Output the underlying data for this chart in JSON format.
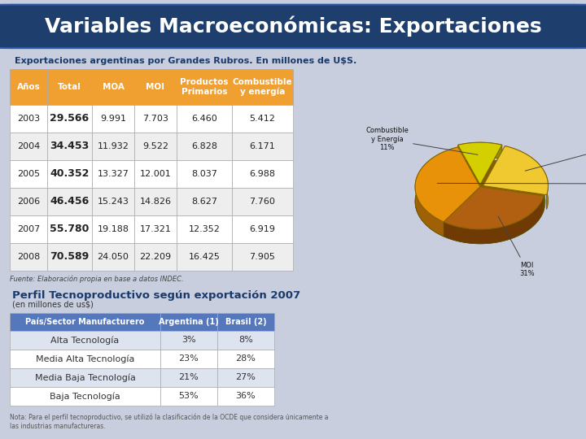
{
  "title": "Variables Macroeconómicas: Exportaciones",
  "title_bg": "#1e3f6e",
  "subtitle": "Exportaciones argentinas por Grandes Rubros. En millones de U$S.",
  "table_headers": [
    "Años",
    "Total",
    "MOA",
    "MOI",
    "Productos\nPrimarios",
    "Combustible\ny energía"
  ],
  "table_data": [
    [
      "2003",
      "29.566",
      "9.991",
      "7.703",
      "6.460",
      "5.412"
    ],
    [
      "2004",
      "34.453",
      "11.932",
      "9.522",
      "6.828",
      "6.171"
    ],
    [
      "2005",
      "40.352",
      "13.327",
      "12.001",
      "8.037",
      "6.988"
    ],
    [
      "2006",
      "46.456",
      "15.243",
      "14.826",
      "8.627",
      "7.760"
    ],
    [
      "2007",
      "55.780",
      "19.188",
      "17.321",
      "12.352",
      "6.919"
    ],
    [
      "2008",
      "70.589",
      "24.050",
      "22.209",
      "16.425",
      "7.905"
    ]
  ],
  "header_bg": "#f0a030",
  "header_fg": "#ffffff",
  "row_bg_even": "#ffffff",
  "row_bg_odd": "#eeeeee",
  "row_fg": "#222222",
  "source_text": "Fuente: Elaboración propia en base a datos INDEC.",
  "perfil_title": "Perfil Tecnoproductivo según exportación 2007",
  "perfil_subtitle": "(en millones de us$)",
  "perfil_headers": [
    "País/Sector Manufacturero",
    "Argentina (1)",
    "Brasil (2)"
  ],
  "perfil_header_bg": "#5577bb",
  "perfil_data": [
    [
      "Alta Tecnología",
      "3%",
      "8%"
    ],
    [
      "Media Alta Tecnología",
      "23%",
      "28%"
    ],
    [
      "Media Baja Tecnología",
      "21%",
      "27%"
    ],
    [
      "Baja Tecnología",
      "53%",
      "36%"
    ]
  ],
  "nota_text": "Nota: Para el perfil tecnoproductivo, se utilizó la clasificación de la OCDE que considera únicamente a\nlas industrias manufactureras.",
  "pie_values": [
    35,
    31,
    23,
    11
  ],
  "pie_colors": [
    "#e8920a",
    "#b06010",
    "#f0c830",
    "#d4d000"
  ],
  "pie_shadow_colors": [
    "#a06005",
    "#703a05",
    "#a08010",
    "#909000"
  ],
  "pie_explode": [
    0,
    0,
    0.05,
    0.05
  ],
  "page_bg": "#c8cedd"
}
